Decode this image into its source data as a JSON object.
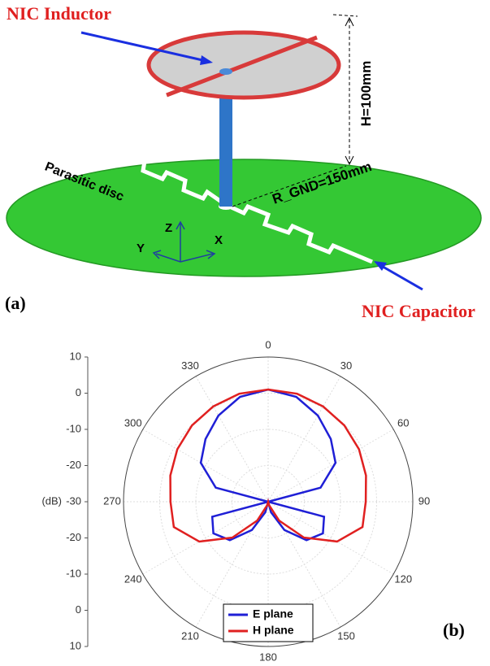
{
  "figure_a": {
    "label": "(a)",
    "inductor_label": "NIC Inductor",
    "capacitor_label": "NIC Capacitor",
    "height_label": "H=100mm",
    "radius_label": "R_GND=150mm",
    "disc_label": "Parasitic disc",
    "axes": [
      "Z",
      "Y",
      "X"
    ]
  },
  "chart_data": {
    "type": "polar",
    "label": "(b)",
    "radial_label": "(dB)",
    "theta": [
      0,
      15,
      30,
      45,
      60,
      75,
      90,
      105,
      120,
      135,
      150,
      165,
      180,
      195,
      210,
      225,
      240,
      255,
      270,
      285,
      300,
      315,
      330,
      345
    ],
    "rlim": [
      -30,
      10
    ],
    "rticks": [
      -30,
      -20,
      -10,
      0,
      10
    ],
    "thetaticks": [
      0,
      30,
      60,
      90,
      120,
      150,
      180,
      210,
      240,
      270,
      300,
      330
    ],
    "grid": true,
    "legend": "lower center",
    "series": [
      {
        "name": "E plane",
        "color": "#1f1fd6",
        "values": [
          1,
          0,
          -2.5,
          -5.5,
          -8.5,
          -15,
          -30,
          -14,
          -12.5,
          -15,
          -21,
          -27,
          -30,
          -27,
          -21,
          -15,
          -12.5,
          -14,
          -30,
          -15,
          -8.5,
          -5.5,
          -2.5,
          0
        ]
      },
      {
        "name": "H plane",
        "color": "#e02020",
        "values": [
          1,
          0.9,
          0.4,
          -0.2,
          -1,
          -2,
          -3,
          -3,
          -8,
          -16,
          -24,
          -29,
          -30,
          -29,
          -24,
          -16,
          -8,
          -3,
          -3,
          -2,
          -1,
          -0.2,
          0.4,
          0.9
        ]
      }
    ]
  }
}
